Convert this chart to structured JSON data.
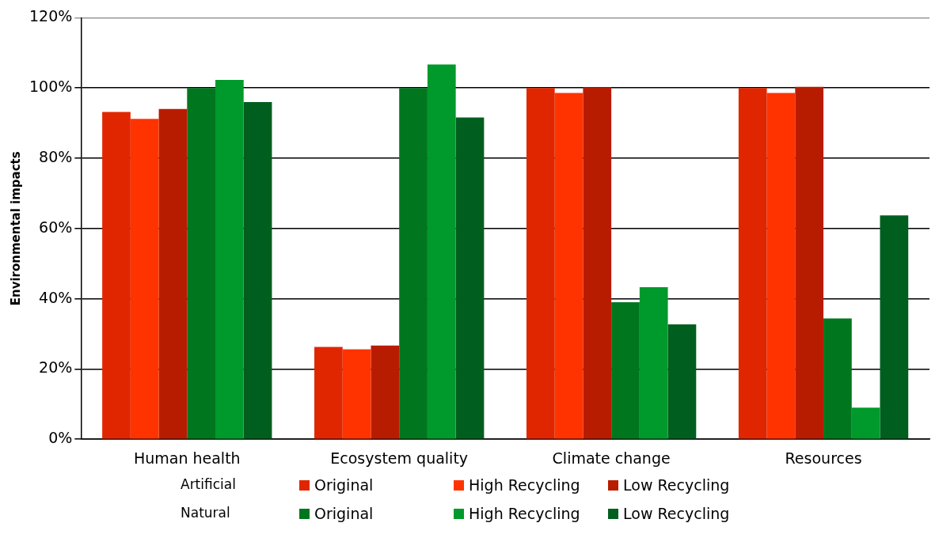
{
  "chart_data": {
    "type": "bar",
    "ylabel": "Environmental impacts",
    "categories": [
      "Human health",
      "Ecosystem quality",
      "Climate change",
      "Resources"
    ],
    "series": [
      {
        "name": "Original",
        "color": "#e02600",
        "values": [
          93.2,
          26.3,
          100,
          100
        ]
      },
      {
        "name": "High Recycling",
        "color": "#ff3300",
        "values": [
          91.2,
          25.6,
          98.6,
          98.6
        ]
      },
      {
        "name": "Low Recycling",
        "color": "#b81c00",
        "values": [
          94,
          26.7,
          100.2,
          100.3
        ]
      },
      {
        "name": "Original",
        "color": "#00771e",
        "values": [
          100,
          100,
          39,
          34.4
        ]
      },
      {
        "name": "High Recycling",
        "color": "#00992c",
        "values": [
          102.3,
          106.7,
          43.3,
          9
        ]
      },
      {
        "name": "Low Recycling",
        "color": "#005f1f",
        "values": [
          96,
          91.6,
          32.7,
          63.7
        ]
      }
    ],
    "ylim": [
      0,
      120
    ],
    "yticks": [
      {
        "value": 0,
        "label": "0%"
      },
      {
        "value": 20,
        "label": "20%"
      },
      {
        "value": 40,
        "label": "40%"
      },
      {
        "value": 60,
        "label": "60%"
      },
      {
        "value": 80,
        "label": "80%"
      },
      {
        "value": 100,
        "label": "100%"
      },
      {
        "value": 120,
        "label": "120%"
      }
    ],
    "grid": "y",
    "legend": "bottom",
    "annotations": [
      "Artificial",
      "Natural"
    ]
  }
}
